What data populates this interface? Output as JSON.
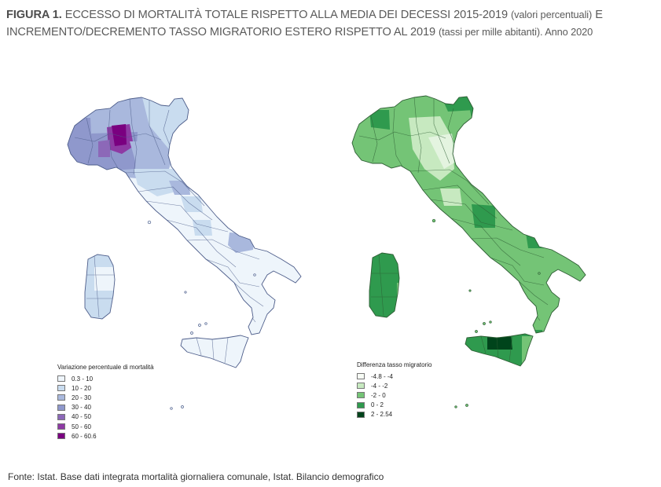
{
  "title": {
    "label": "FIGURA 1.",
    "main": "ECCESSO DI MORTALITÀ TOTALE RISPETTO ALLA MEDIA DEI DECESSI 2015-2019",
    "note1": "(valori percentuali)",
    "main2": "E INCREMENTO/DECREMENTO TASSO MIGRATORIO ESTERO RISPETTO AL 2019",
    "note2": "(tassi per mille abitanti). Anno 2020"
  },
  "left_map": {
    "legend_title": "Variazione percentuale di mortalità",
    "legend": [
      {
        "label": "0.3 - 10",
        "color": "#eef5fb"
      },
      {
        "label": "10 - 20",
        "color": "#c9dcef"
      },
      {
        "label": "20 - 30",
        "color": "#a9b8dd"
      },
      {
        "label": "30 - 40",
        "color": "#8f98cc"
      },
      {
        "label": "40 - 50",
        "color": "#8c68b8"
      },
      {
        "label": "50 - 60",
        "color": "#8e3aa4"
      },
      {
        "label": "60 - 60.6",
        "color": "#7a0080"
      }
    ]
  },
  "right_map": {
    "legend_title": "Differenza tasso migratorio",
    "legend": [
      {
        "label": "-4.8 - -4",
        "color": "#f7fcf5"
      },
      {
        "label": "-4 - -2",
        "color": "#c7e9c0"
      },
      {
        "label": "-2 - 0",
        "color": "#74c476"
      },
      {
        "label": "0 - 2",
        "color": "#2f9a4e"
      },
      {
        "label": "2 - 2.54",
        "color": "#00441b"
      }
    ]
  },
  "source": "Fonte: Istat. Base dati integrata mortalità giornaliera comunale, Istat. Bilancio demografico"
}
